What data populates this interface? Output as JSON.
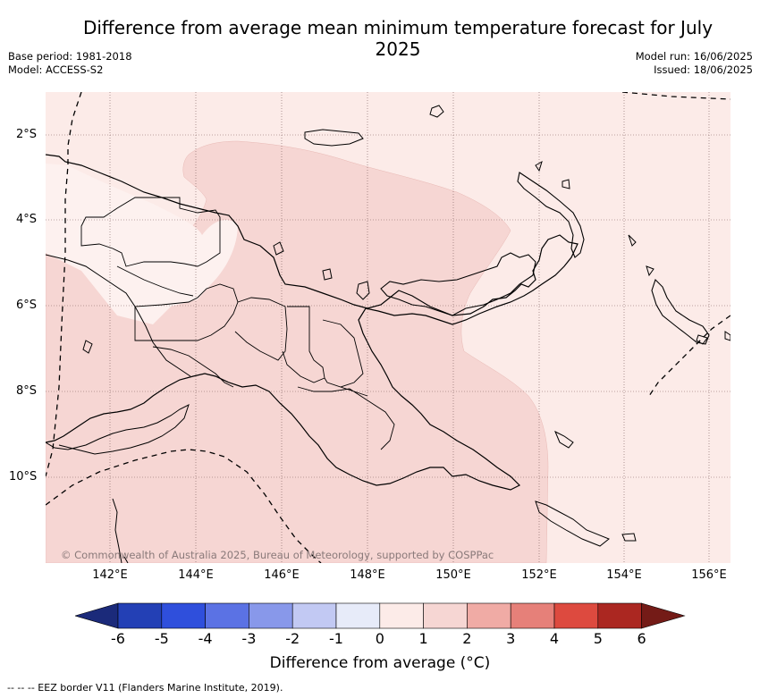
{
  "title": "Difference from average mean minimum temperature forecast for July 2025",
  "base_period": "Base period: 1981-2018",
  "model": "Model: ACCESS-S2",
  "model_run": "Model run: 16/06/2025",
  "issued": "Issued: 18/06/2025",
  "copyright": "© Commonwealth of Australia 2025, Bureau of Meteorology, supported by COSPPac",
  "lat_labels": [
    "2°S",
    "4°S",
    "6°S",
    "8°S",
    "10°S"
  ],
  "lon_labels": [
    "142°E",
    "144°E",
    "146°E",
    "148°E",
    "150°E",
    "152°E",
    "154°E",
    "156°E"
  ],
  "colorbar": {
    "label": "Difference from average (°C)",
    "ticks": [
      "-6",
      "-5",
      "-4",
      "-3",
      "-2",
      "-1",
      "0",
      "1",
      "2",
      "3",
      "4",
      "5",
      "6"
    ],
    "colors": [
      "#1b2a7a",
      "#2340b5",
      "#2f4fdc",
      "#5b72e4",
      "#8898ea",
      "#c2c9f3",
      "#e7ebf9",
      "#fcebe8",
      "#f6d6d3",
      "#f0aba5",
      "#e68079",
      "#dd4a3f",
      "#ab2721",
      "#741b17"
    ]
  },
  "eez_note": "-- -- -- EEZ border V11 (Flanders Marine Institute, 2019).",
  "map_fills": {
    "ocean": "#fcebe8",
    "anomaly_1_2": "#f6d6d3",
    "anomaly_0_1_land": "#fdf1ef"
  }
}
